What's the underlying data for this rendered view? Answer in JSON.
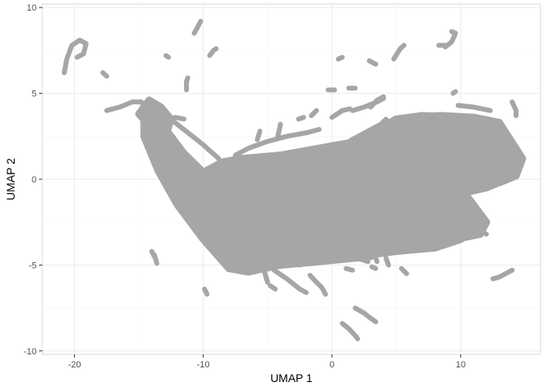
{
  "chart_data": {
    "type": "scatter",
    "title": "",
    "xlabel": "UMAP 1",
    "ylabel": "UMAP 2",
    "xlim": [
      -22.5,
      16.2
    ],
    "ylim": [
      -10.2,
      10.2
    ],
    "x_ticks": [
      -20,
      -10,
      0,
      10
    ],
    "x_tick_labels": [
      "-20",
      "-10",
      "0",
      "10"
    ],
    "y_ticks": [
      -10,
      -5,
      0,
      5,
      10
    ],
    "y_tick_labels": [
      "-10",
      "-5",
      "0",
      "5",
      "10"
    ],
    "grid": true,
    "legend": "none",
    "point_color": "#a6a6a6",
    "grid_major_color": "#ebebeb",
    "grid_minor_color": "#f5f5f5",
    "border_color": "#d9d9d9",
    "regions": [
      {
        "name": "main body",
        "polygon": [
          [
            -14.6,
            4.3
          ],
          [
            -13.8,
            4.4
          ],
          [
            -13.0,
            3.0
          ],
          [
            -11.5,
            1.5
          ],
          [
            -10.0,
            0.4
          ],
          [
            -8.5,
            1.0
          ],
          [
            -7.0,
            1.2
          ],
          [
            -4.0,
            1.4
          ],
          [
            -1.0,
            1.8
          ],
          [
            2.0,
            2.2
          ],
          [
            5.0,
            3.5
          ],
          [
            7.0,
            3.7
          ],
          [
            10.0,
            3.6
          ],
          [
            12.0,
            3.4
          ],
          [
            13.5,
            2.6
          ],
          [
            14.7,
            1.0
          ],
          [
            14.3,
            0.2
          ],
          [
            13.0,
            -0.2
          ],
          [
            10.0,
            -0.8
          ],
          [
            10.0,
            -2.0
          ],
          [
            11.0,
            -2.8
          ],
          [
            10.0,
            -3.5
          ],
          [
            8.0,
            -4.0
          ],
          [
            5.0,
            -4.2
          ],
          [
            3.0,
            -4.4
          ],
          [
            0.0,
            -4.5
          ],
          [
            -2.0,
            -4.8
          ],
          [
            -4.0,
            -5.0
          ],
          [
            -6.5,
            -5.4
          ],
          [
            -8.0,
            -5.2
          ],
          [
            -10.0,
            -3.5
          ],
          [
            -12.0,
            -1.5
          ],
          [
            -13.5,
            0.5
          ],
          [
            -14.6,
            2.5
          ]
        ]
      },
      {
        "name": "upper-left cluster",
        "polygon": [
          [
            -15.0,
            3.8
          ],
          [
            -14.2,
            4.6
          ],
          [
            -13.3,
            4.2
          ],
          [
            -12.5,
            3.5
          ],
          [
            -12.8,
            2.8
          ],
          [
            -14.0,
            3.0
          ]
        ]
      },
      {
        "name": "right lobe",
        "polygon": [
          [
            1.5,
            2.2
          ],
          [
            4.0,
            3.2
          ],
          [
            6.0,
            3.6
          ],
          [
            8.5,
            3.7
          ],
          [
            11.0,
            3.6
          ],
          [
            13.0,
            3.3
          ],
          [
            14.8,
            1.2
          ],
          [
            14.2,
            0.2
          ],
          [
            12.0,
            -0.5
          ],
          [
            9.0,
            -1.0
          ],
          [
            6.0,
            -0.5
          ],
          [
            3.5,
            0.3
          ]
        ]
      },
      {
        "name": "lower lobe",
        "polygon": [
          [
            -9.5,
            -2.0
          ],
          [
            -6.0,
            -1.0
          ],
          [
            -2.0,
            -1.5
          ],
          [
            2.0,
            -2.5
          ],
          [
            5.0,
            -3.5
          ],
          [
            3.0,
            -4.5
          ],
          [
            -1.0,
            -4.8
          ],
          [
            -4.0,
            -5.0
          ],
          [
            -7.0,
            -5.3
          ],
          [
            -9.0,
            -4.0
          ]
        ]
      },
      {
        "name": "right lower appendage",
        "polygon": [
          [
            8.0,
            -1.5
          ],
          [
            10.5,
            -1.0
          ],
          [
            12.0,
            -2.5
          ],
          [
            11.5,
            -3.2
          ],
          [
            9.0,
            -3.6
          ],
          [
            7.0,
            -3.0
          ]
        ]
      }
    ],
    "strokes": [
      {
        "name": "loop top-left",
        "points": [
          [
            -20.8,
            6.2
          ],
          [
            -20.6,
            7.0
          ],
          [
            -20.2,
            7.8
          ],
          [
            -19.6,
            8.1
          ],
          [
            -19.1,
            7.9
          ],
          [
            -19.3,
            7.3
          ],
          [
            -19.8,
            7.1
          ]
        ]
      },
      {
        "name": "isolated -17.8,6",
        "points": [
          [
            -17.8,
            6.2
          ],
          [
            -17.5,
            6.0
          ]
        ]
      },
      {
        "name": "arm top-left",
        "points": [
          [
            -17.5,
            4.0
          ],
          [
            -16.5,
            4.2
          ],
          [
            -15.5,
            4.5
          ],
          [
            -14.8,
            4.5
          ]
        ]
      },
      {
        "name": "isolated -12.9,7.2",
        "points": [
          [
            -12.9,
            7.2
          ],
          [
            -12.7,
            7.1
          ]
        ]
      },
      {
        "name": "-10.5 top",
        "points": [
          [
            -10.7,
            8.5
          ],
          [
            -10.4,
            8.9
          ],
          [
            -10.2,
            9.2
          ]
        ]
      },
      {
        "name": "-9.4 upper",
        "points": [
          [
            -9.5,
            7.2
          ],
          [
            -9.2,
            7.5
          ],
          [
            -9.0,
            7.6
          ]
        ]
      },
      {
        "name": "-11.4 vertical",
        "points": [
          [
            -11.3,
            5.2
          ],
          [
            -11.3,
            5.7
          ],
          [
            -11.2,
            5.9
          ]
        ]
      },
      {
        "name": "left diagonal arm",
        "points": [
          [
            -13.2,
            4.0
          ],
          [
            -12.2,
            3.3
          ],
          [
            -11.0,
            2.6
          ],
          [
            -10.0,
            2.0
          ],
          [
            -9.4,
            1.6
          ],
          [
            -8.8,
            1.2
          ]
        ]
      },
      {
        "name": "stub -12,3.5",
        "points": [
          [
            -12.2,
            3.6
          ],
          [
            -11.5,
            3.5
          ]
        ]
      },
      {
        "name": "upper ridge -6.5 to 0",
        "points": [
          [
            -7.5,
            1.4
          ],
          [
            -6.5,
            1.8
          ],
          [
            -5.0,
            2.2
          ],
          [
            -3.5,
            2.5
          ],
          [
            -2.0,
            2.7
          ],
          [
            -1.0,
            2.9
          ]
        ]
      },
      {
        "name": "-5.6 upper",
        "points": [
          [
            -5.8,
            2.3
          ],
          [
            -5.6,
            2.8
          ]
        ]
      },
      {
        "name": "-4 upper",
        "points": [
          [
            -4.2,
            2.5
          ],
          [
            -4.0,
            3.2
          ]
        ]
      },
      {
        "name": "-2.5 upper",
        "points": [
          [
            -2.6,
            3.5
          ],
          [
            -2.2,
            3.6
          ]
        ]
      },
      {
        "name": "-1.5 upper",
        "points": [
          [
            -1.6,
            3.7
          ],
          [
            -1.2,
            4.0
          ]
        ]
      },
      {
        "name": "0 to 1 upper",
        "points": [
          [
            0.0,
            3.6
          ],
          [
            0.8,
            4.0
          ],
          [
            1.4,
            4.1
          ]
        ]
      },
      {
        "name": "0.5 isolated",
        "points": [
          [
            -0.3,
            5.2
          ],
          [
            0.2,
            5.2
          ]
        ]
      },
      {
        "name": "1 isolated",
        "points": [
          [
            1.3,
            5.3
          ],
          [
            1.8,
            5.3
          ]
        ]
      },
      {
        "name": "0.6 top",
        "points": [
          [
            0.5,
            7.0
          ],
          [
            0.8,
            7.1
          ]
        ]
      },
      {
        "name": "3 top",
        "points": [
          [
            2.9,
            6.9
          ],
          [
            3.4,
            6.7
          ]
        ]
      },
      {
        "name": "2 to 4 upper arm",
        "points": [
          [
            1.6,
            4.0
          ],
          [
            2.5,
            4.2
          ],
          [
            3.5,
            4.5
          ],
          [
            4.0,
            4.7
          ]
        ]
      },
      {
        "name": "4.8 isolated",
        "points": [
          [
            4.8,
            7.0
          ],
          [
            5.3,
            7.6
          ],
          [
            5.6,
            7.8
          ]
        ]
      },
      {
        "name": "4 to 3.2 arm",
        "points": [
          [
            4.0,
            4.8
          ],
          [
            3.5,
            4.6
          ],
          [
            3.0,
            4.2
          ]
        ]
      },
      {
        "name": "9 top",
        "points": [
          [
            8.8,
            7.7
          ],
          [
            9.3,
            8.0
          ],
          [
            9.6,
            8.5
          ],
          [
            9.3,
            8.6
          ]
        ]
      },
      {
        "name": "8.5 top",
        "points": [
          [
            8.3,
            7.8
          ],
          [
            8.8,
            7.8
          ]
        ]
      },
      {
        "name": "9.6 upper",
        "points": [
          [
            9.4,
            5.0
          ],
          [
            9.6,
            5.1
          ]
        ]
      },
      {
        "name": "10 to 12 upper",
        "points": [
          [
            9.8,
            4.3
          ],
          [
            11.0,
            4.2
          ],
          [
            12.3,
            4.0
          ]
        ]
      },
      {
        "name": "14.1 right",
        "points": [
          [
            14.0,
            4.5
          ],
          [
            14.3,
            4.0
          ],
          [
            14.3,
            3.7
          ]
        ]
      },
      {
        "name": "-5.3 lower",
        "points": [
          [
            -5.6,
            -4.2
          ],
          [
            -5.2,
            -5.5
          ],
          [
            -5.0,
            -6.0
          ]
        ]
      },
      {
        "name": "-4 lower",
        "points": [
          [
            -4.8,
            -6.2
          ],
          [
            -4.4,
            -6.4
          ]
        ]
      },
      {
        "name": "-4 to -2 lower",
        "points": [
          [
            -4.5,
            -5.3
          ],
          [
            -3.5,
            -5.8
          ],
          [
            -2.5,
            -6.4
          ],
          [
            -2.0,
            -6.6
          ]
        ]
      },
      {
        "name": "-2 to -1 lower",
        "points": [
          [
            -1.7,
            -5.6
          ],
          [
            -1.2,
            -6.0
          ],
          [
            -0.8,
            -6.3
          ],
          [
            -0.5,
            -6.7
          ]
        ]
      },
      {
        "name": "-3 lower",
        "points": [
          [
            -3.2,
            -4.8
          ],
          [
            -2.5,
            -5.0
          ]
        ]
      },
      {
        "name": "-1.7 lower",
        "points": [
          [
            -2.0,
            -4.2
          ],
          [
            -1.7,
            -4.4
          ]
        ]
      },
      {
        "name": "-0.5 lower",
        "points": [
          [
            -0.6,
            -4.0
          ],
          [
            -0.4,
            -4.6
          ],
          [
            -0.3,
            -4.8
          ]
        ]
      },
      {
        "name": "-11.5 lower",
        "points": [
          [
            -13.8,
            -4.4
          ],
          [
            -13.6,
            -4.9
          ]
        ]
      },
      {
        "name": "-9.9 lower",
        "points": [
          [
            -9.9,
            -6.4
          ],
          [
            -9.7,
            -6.7
          ]
        ]
      },
      {
        "name": "1.5 lower",
        "points": [
          [
            1.1,
            -5.2
          ],
          [
            1.6,
            -5.3
          ]
        ]
      },
      {
        "name": "2.6 lower",
        "points": [
          [
            2.0,
            -4.6
          ],
          [
            2.8,
            -4.8
          ]
        ]
      },
      {
        "name": "2.6 to 3.6 lower",
        "points": [
          [
            2.6,
            -3.6
          ],
          [
            3.2,
            -4.2
          ],
          [
            3.5,
            -4.8
          ]
        ]
      },
      {
        "name": "3.3 lower",
        "points": [
          [
            3.1,
            -5.1
          ],
          [
            3.4,
            -5.2
          ]
        ]
      },
      {
        "name": "4.4 lower",
        "points": [
          [
            4.2,
            -4.6
          ],
          [
            4.4,
            -5.0
          ]
        ]
      },
      {
        "name": "5.5 lower",
        "points": [
          [
            5.4,
            -5.2
          ],
          [
            5.8,
            -5.5
          ]
        ]
      },
      {
        "name": "1.7 to 3.4 lower",
        "points": [
          [
            1.8,
            -7.5
          ],
          [
            2.5,
            -7.8
          ],
          [
            3.0,
            -8.1
          ],
          [
            3.4,
            -8.3
          ]
        ]
      },
      {
        "name": "1 to 2 bottom",
        "points": [
          [
            0.8,
            -8.4
          ],
          [
            1.3,
            -8.7
          ],
          [
            1.8,
            -9.1
          ],
          [
            2.0,
            -9.3
          ]
        ]
      },
      {
        "name": "12.7 lower",
        "points": [
          [
            12.5,
            -5.8
          ],
          [
            13.0,
            -5.7
          ],
          [
            13.5,
            -5.5
          ],
          [
            14.0,
            -5.3
          ]
        ]
      },
      {
        "name": "11 lower",
        "points": [
          [
            10.5,
            -2.5
          ],
          [
            11.0,
            -2.8
          ],
          [
            11.5,
            -3.0
          ],
          [
            12.0,
            -3.2
          ]
        ]
      },
      {
        "name": "3.5 middle",
        "points": [
          [
            2.0,
            -1.5
          ],
          [
            2.7,
            -2.0
          ],
          [
            3.4,
            -2.5
          ],
          [
            4.0,
            -3.0
          ]
        ]
      },
      {
        "name": "5.8 middle",
        "points": [
          [
            5.5,
            -3.0
          ],
          [
            6.0,
            -3.5
          ],
          [
            6.5,
            -3.8
          ]
        ]
      },
      {
        "name": "4.2 upper-middle",
        "points": [
          [
            3.8,
            3.2
          ],
          [
            4.2,
            3.5
          ]
        ]
      },
      {
        "name": "-13.7 bottom",
        "points": [
          [
            -14.0,
            -4.2
          ],
          [
            -13.8,
            -4.5
          ]
        ]
      }
    ]
  }
}
